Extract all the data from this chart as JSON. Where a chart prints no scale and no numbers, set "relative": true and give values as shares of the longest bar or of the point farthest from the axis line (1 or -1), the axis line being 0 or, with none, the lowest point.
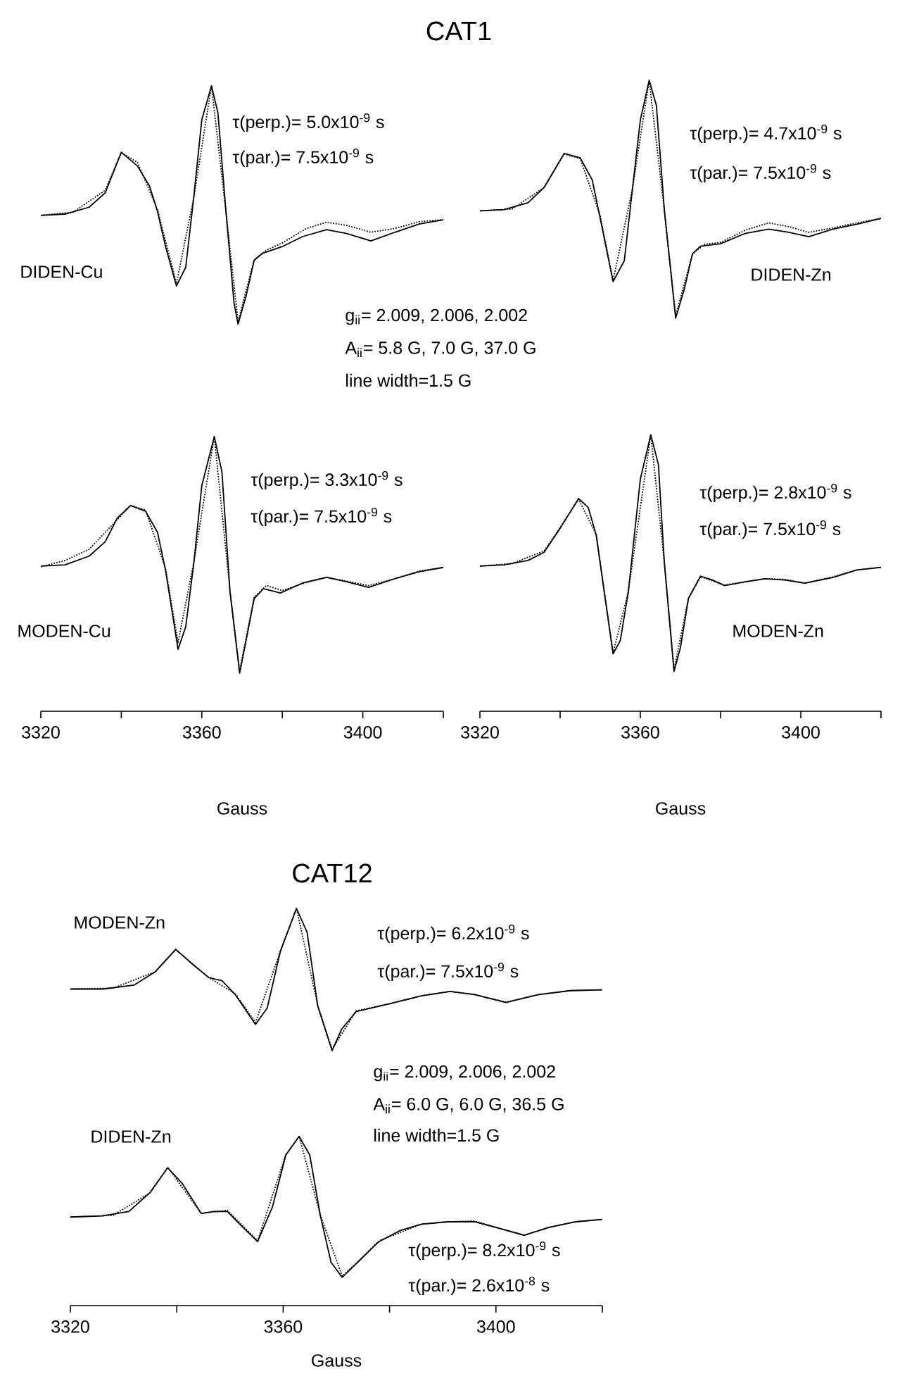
{
  "chart_data": [
    {
      "type": "line",
      "relative": true,
      "title": "CAT1",
      "xlabel": "Gauss",
      "xlim": [
        3320,
        3420
      ],
      "xticks": [
        3320,
        {
          "value": 3340,
          "label": null
        },
        3360,
        {
          "value": 3380,
          "label": null
        },
        3400,
        {
          "value": 3420,
          "label": null
        }
      ],
      "tick_labels": "x",
      "annotations": [
        "τ(perp.)= 5.0x10$^{-9}$ s",
        "τ(par.)= 7.5x10$^{-9}$ s",
        "DIDEN-Cu",
        "g$_{ii}$= 2.009, 2.006, 2.002",
        "A$_{ii}$= 5.8 G, 7.0 G, 37.0 G",
        "line width=1.5 G",
        "τ(perp.)= 3.3x10$^{-9}$ s",
        "τ(par.)= 7.5x10$^{-9}$ s",
        "MODEN-Cu"
      ],
      "series": [
        {
          "color": "#000000",
          "line_style": "solid",
          "x": [
            3320,
            3326,
            3332,
            3336,
            3340,
            3344,
            3347,
            3349,
            3351,
            3353.7,
            3356,
            3358,
            3360,
            3362.4,
            3364,
            3366,
            3368,
            3369,
            3371,
            3373,
            3375,
            3380,
            3385,
            3391,
            3396,
            3402,
            3408,
            3414,
            3420
          ],
          "values": [
            0.793,
            0.795,
            0.806,
            0.829,
            0.894,
            0.872,
            0.84,
            0.799,
            0.743,
            0.68,
            0.71,
            0.822,
            0.946,
            1,
            0.957,
            0.799,
            0.653,
            0.619,
            0.664,
            0.721,
            0.732,
            0.743,
            0.759,
            0.77,
            0.764,
            0.752,
            0.766,
            0.779,
            0.786
          ]
        },
        {
          "color": "#000000",
          "line_style": "dotted",
          "x": [
            3320,
            3328,
            3336,
            3340,
            3344,
            3349,
            3353.7,
            3358,
            3362.4,
            3366,
            3369,
            3373,
            3376,
            3380,
            3386,
            3391,
            3396,
            3402,
            3408,
            3414,
            3420
          ],
          "values": [
            0.793,
            0.798,
            0.833,
            0.893,
            0.878,
            0.802,
            0.684,
            0.821,
            1,
            0.799,
            0.623,
            0.722,
            0.737,
            0.749,
            0.772,
            0.782,
            0.777,
            0.766,
            0.772,
            0.783,
            0.786
          ]
        },
        {
          "color": "#000000",
          "line_style": "solid",
          "x": [
            3320,
            3326,
            3332,
            3336,
            3339,
            3342.3,
            3346,
            3349,
            3351,
            3354.1,
            3356,
            3358,
            3360,
            3363.1,
            3365,
            3367,
            3369.4,
            3371,
            3373,
            3375.3,
            3379.5,
            3385,
            3391,
            3396,
            3401.4,
            3408,
            3414,
            3420
          ],
          "values": [
            0.232,
            0.234,
            0.248,
            0.271,
            0.309,
            0.329,
            0.32,
            0.286,
            0.225,
            0.099,
            0.135,
            0.236,
            0.361,
            0.439,
            0.383,
            0.191,
            0.061,
            0.113,
            0.18,
            0.196,
            0.189,
            0.205,
            0.214,
            0.207,
            0.198,
            0.212,
            0.223,
            0.23
          ]
        },
        {
          "color": "#000000",
          "line_style": "dotted",
          "x": [
            3320,
            3326,
            3332,
            3336,
            3342.3,
            3346,
            3351,
            3354.1,
            3358,
            3363.1,
            3367,
            3369.4,
            3373,
            3376,
            3380,
            3386,
            3391,
            3396,
            3401.4,
            3408,
            3414,
            3420
          ],
          "values": [
            0.231,
            0.241,
            0.259,
            0.286,
            0.329,
            0.322,
            0.228,
            0.11,
            0.238,
            0.439,
            0.193,
            0.065,
            0.182,
            0.201,
            0.193,
            0.206,
            0.214,
            0.208,
            0.201,
            0.212,
            0.224,
            0.23
          ]
        }
      ]
    },
    {
      "type": "line",
      "relative": true,
      "xlabel": "Gauss",
      "xlim": [
        3320,
        3420
      ],
      "xticks": [
        3320,
        {
          "value": 3340,
          "label": null
        },
        3360,
        {
          "value": 3380,
          "label": null
        },
        3400,
        {
          "value": 3420,
          "label": null
        }
      ],
      "tick_labels": "x",
      "annotations": [
        "τ(perp.)= 4.7x10$^{-9}$ s",
        "τ(par.)= 7.5x10$^{-9}$ s",
        "DIDEN-Zn",
        "τ(perp.)= 2.8x10$^{-9}$ s",
        "τ(par.)= 7.5x10$^{-9}$ s",
        "MODEN-Zn"
      ],
      "series": [
        {
          "color": "#000000",
          "line_style": "solid",
          "x": [
            3320,
            3326,
            3332,
            3336,
            3341,
            3345,
            3348,
            3350,
            3353.2,
            3356,
            3358,
            3360,
            3362.2,
            3364,
            3366,
            3368.8,
            3371,
            3373,
            3375,
            3380,
            3386,
            3392,
            3397,
            3402,
            3408,
            3414,
            3420
          ],
          "values": [
            0.793,
            0.795,
            0.806,
            0.83,
            0.884,
            0.877,
            0.842,
            0.781,
            0.681,
            0.714,
            0.826,
            0.937,
            1,
            0.96,
            0.793,
            0.623,
            0.67,
            0.725,
            0.737,
            0.741,
            0.757,
            0.764,
            0.759,
            0.752,
            0.764,
            0.772,
            0.781
          ]
        },
        {
          "color": "#000000",
          "line_style": "dotted",
          "x": [
            3320,
            3328,
            3336,
            3341,
            3345,
            3350,
            3353.2,
            3358,
            3362.2,
            3366,
            3368.8,
            3373,
            3376,
            3380,
            3386,
            3392,
            3397,
            3402,
            3408,
            3414,
            3420
          ],
          "values": [
            0.793,
            0.796,
            0.83,
            0.883,
            0.876,
            0.785,
            0.683,
            0.827,
            1,
            0.793,
            0.627,
            0.725,
            0.74,
            0.743,
            0.762,
            0.774,
            0.768,
            0.759,
            0.766,
            0.774,
            0.781
          ]
        },
        {
          "color": "#000000",
          "line_style": "solid",
          "x": [
            3320,
            3326,
            3332,
            3336,
            3340,
            3344.6,
            3347,
            3349,
            3351,
            3353.2,
            3355,
            3357,
            3360,
            3362.6,
            3364.5,
            3366,
            3368.4,
            3370,
            3372,
            3375,
            3378,
            3381,
            3386,
            3391,
            3396,
            3401,
            3408,
            3414,
            3420
          ],
          "values": [
            0.23,
            0.232,
            0.239,
            0.252,
            0.29,
            0.337,
            0.323,
            0.279,
            0.189,
            0.091,
            0.112,
            0.189,
            0.368,
            0.438,
            0.391,
            0.234,
            0.063,
            0.101,
            0.179,
            0.214,
            0.208,
            0.199,
            0.205,
            0.21,
            0.208,
            0.203,
            0.212,
            0.224,
            0.228
          ]
        },
        {
          "color": "#000000",
          "line_style": "dotted",
          "x": [
            3320,
            3328,
            3336,
            3340,
            3344.6,
            3349,
            3353.2,
            3357,
            3362.6,
            3366,
            3368.4,
            3372,
            3375,
            3381,
            3386,
            3391,
            3396,
            3401,
            3408,
            3414,
            3420
          ],
          "values": [
            0.23,
            0.234,
            0.254,
            0.291,
            0.336,
            0.28,
            0.092,
            0.19,
            0.438,
            0.235,
            0.066,
            0.179,
            0.213,
            0.2,
            0.205,
            0.21,
            0.209,
            0.203,
            0.213,
            0.224,
            0.228
          ]
        }
      ]
    },
    {
      "type": "line",
      "relative": true,
      "title": "CAT12",
      "xlabel": "Gauss",
      "xlim": [
        3320,
        3420
      ],
      "xticks": [
        3320,
        {
          "value": 3340,
          "label": null
        },
        3360,
        {
          "value": 3380,
          "label": null
        },
        3400,
        {
          "value": 3420,
          "label": null
        }
      ],
      "tick_labels": "x",
      "annotations": [
        "MODEN-Zn",
        "τ(perp.)= 6.2x10$^{-9}$ s",
        "τ(par.)= 7.5x10$^{-9}$ s",
        "g$_{ii}$= 2.009, 2.006, 2.002",
        "A$_{ii}$= 6.0 G, 6.0 G, 36.5 G",
        "line width=1.5 G",
        "DIDEN-Zn",
        "τ(perp.)= 8.2x10$^{-9}$ s",
        "τ(par.)= 2.6x10$^{-8}$ s"
      ],
      "series": [
        {
          "color": "#000000",
          "line_style": "solid",
          "x": [
            3320,
            3326,
            3332,
            3336,
            3339.8,
            3343,
            3346,
            3348.5,
            3351,
            3354.8,
            3357,
            3359.5,
            3362.5,
            3364.5,
            3366.5,
            3369.2,
            3371,
            3373.7,
            3380,
            3386,
            3391.4,
            3396,
            3401.9,
            3408,
            3414,
            3420
          ],
          "values": [
            0.797,
            0.797,
            0.807,
            0.841,
            0.897,
            0.859,
            0.826,
            0.818,
            0.783,
            0.708,
            0.749,
            0.893,
            1,
            0.94,
            0.754,
            0.642,
            0.696,
            0.74,
            0.76,
            0.78,
            0.791,
            0.783,
            0.763,
            0.783,
            0.793,
            0.795
          ]
        },
        {
          "color": "#000000",
          "line_style": "dotted",
          "x": [
            3320,
            3328,
            3336,
            3339.8,
            3346,
            3351,
            3354.8,
            3359.5,
            3362.5,
            3366.5,
            3369.2,
            3373.7,
            3380,
            3386,
            3391.4,
            3396,
            3401.9,
            3408,
            3414,
            3420
          ],
          "values": [
            0.797,
            0.799,
            0.841,
            0.896,
            0.826,
            0.785,
            0.713,
            0.893,
            1,
            0.756,
            0.645,
            0.742,
            0.76,
            0.78,
            0.791,
            0.783,
            0.764,
            0.783,
            0.793,
            0.795
          ]
        },
        {
          "color": "#000000",
          "line_style": "solid",
          "x": [
            3320,
            3326,
            3331,
            3335,
            3338.3,
            3341,
            3344.6,
            3347,
            3349.5,
            3352,
            3355.2,
            3358,
            3360.5,
            3363,
            3365,
            3367,
            3369,
            3371.1,
            3374,
            3378,
            3382,
            3386,
            3391,
            3396,
            3401,
            3405.3,
            3410,
            3415,
            3420
          ],
          "values": [
            0.223,
            0.226,
            0.237,
            0.285,
            0.347,
            0.308,
            0.232,
            0.237,
            0.237,
            0.203,
            0.161,
            0.249,
            0.379,
            0.426,
            0.379,
            0.226,
            0.109,
            0.071,
            0.109,
            0.161,
            0.189,
            0.205,
            0.211,
            0.211,
            0.193,
            0.177,
            0.197,
            0.211,
            0.217
          ]
        },
        {
          "color": "#000000",
          "line_style": "dotted",
          "x": [
            3320,
            3328,
            3335,
            3338.3,
            3344.6,
            3349.5,
            3355.2,
            3360.5,
            3363,
            3367,
            3371.1,
            3374,
            3378,
            3386,
            3391,
            3396,
            3401,
            3405.3,
            3410,
            3415,
            3420
          ],
          "values": [
            0.223,
            0.227,
            0.284,
            0.348,
            0.232,
            0.24,
            0.163,
            0.38,
            0.426,
            0.227,
            0.074,
            0.11,
            0.163,
            0.205,
            0.211,
            0.213,
            0.193,
            0.177,
            0.197,
            0.211,
            0.217
          ]
        }
      ]
    }
  ]
}
